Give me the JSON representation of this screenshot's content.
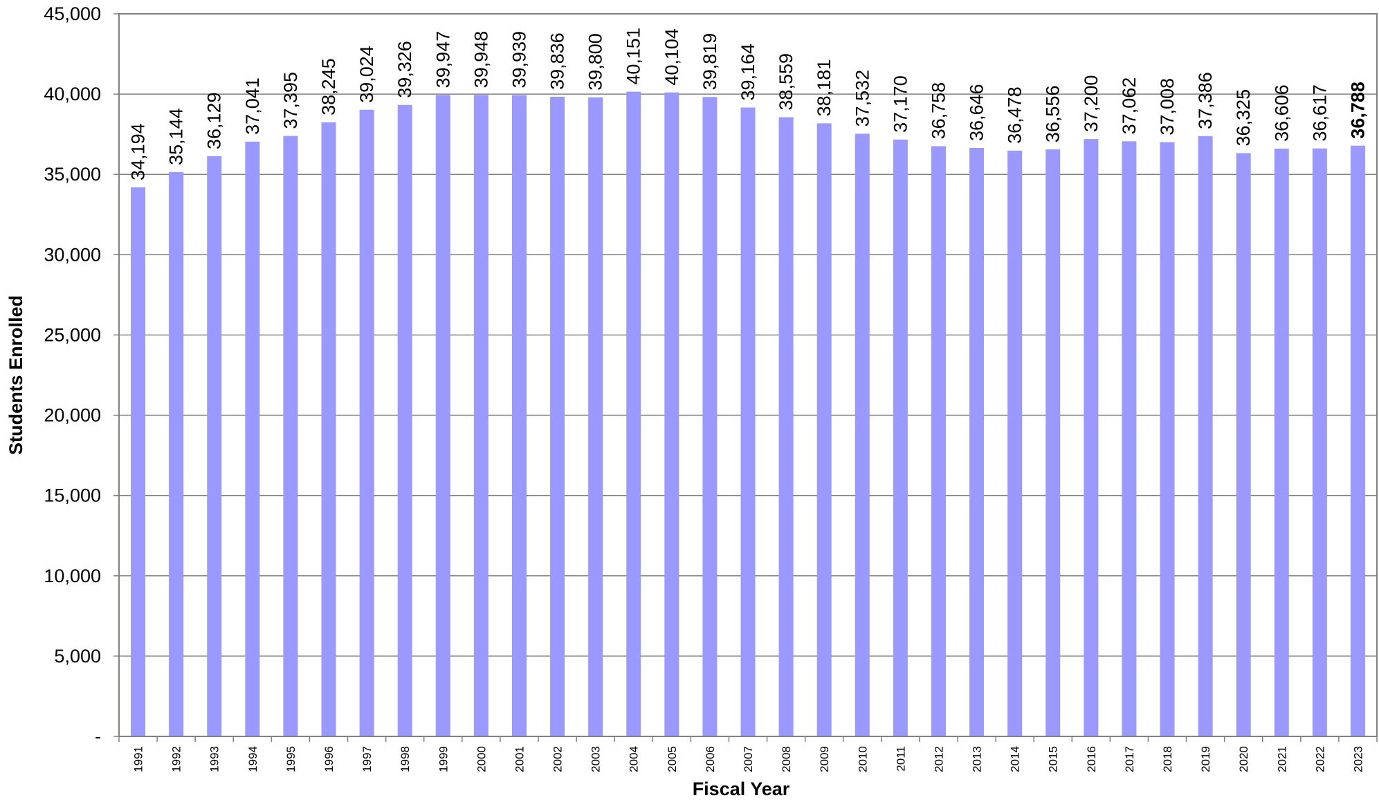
{
  "chart_data": {
    "type": "bar",
    "title": "",
    "xlabel": "Fiscal Year",
    "ylabel": "Students Enrolled",
    "ylim": [
      0,
      45000
    ],
    "yticks": [
      0,
      5000,
      10000,
      15000,
      20000,
      25000,
      30000,
      35000,
      40000,
      45000
    ],
    "ytick_labels": [
      "-",
      "5,000",
      "10,000",
      "15,000",
      "20,000",
      "25,000",
      "30,000",
      "35,000",
      "40,000",
      "45,000"
    ],
    "grid": "horizontal",
    "legend": "none",
    "bar_color": "#9999ff",
    "categories": [
      "1991",
      "1992",
      "1993",
      "1994",
      "1995",
      "1996",
      "1997",
      "1998",
      "1999",
      "2000",
      "2001",
      "2002",
      "2003",
      "2004",
      "2005",
      "2006",
      "2007",
      "2008",
      "2009",
      "2010",
      "2011",
      "2012",
      "2013",
      "2014",
      "2015",
      "2016",
      "2017",
      "2018",
      "2019",
      "2020",
      "2021",
      "2022",
      "2023"
    ],
    "values": [
      34194,
      35144,
      36129,
      37041,
      37395,
      38245,
      39024,
      39326,
      39947,
      39948,
      39939,
      39836,
      39800,
      40151,
      40104,
      39819,
      39164,
      38559,
      38181,
      37532,
      37170,
      36758,
      36646,
      36478,
      36556,
      37200,
      37062,
      37008,
      37386,
      36325,
      36606,
      36617,
      36788
    ],
    "data_labels": [
      "34,194",
      "35,144",
      "36,129",
      "37,041",
      "37,395",
      "38,245",
      "39,024",
      "39,326",
      "39,947",
      "39,948",
      "39,939",
      "39,836",
      "39,800",
      "40,151",
      "40,104",
      "39,819",
      "39,164",
      "38,559",
      "38,181",
      "37,532",
      "37,170",
      "36,758",
      "36,646",
      "36,478",
      "36,556",
      "37,200",
      "37,062",
      "37,008",
      "37,386",
      "36,325",
      "36,606",
      "36,617",
      "36,788"
    ],
    "bold_label_index": 32
  }
}
